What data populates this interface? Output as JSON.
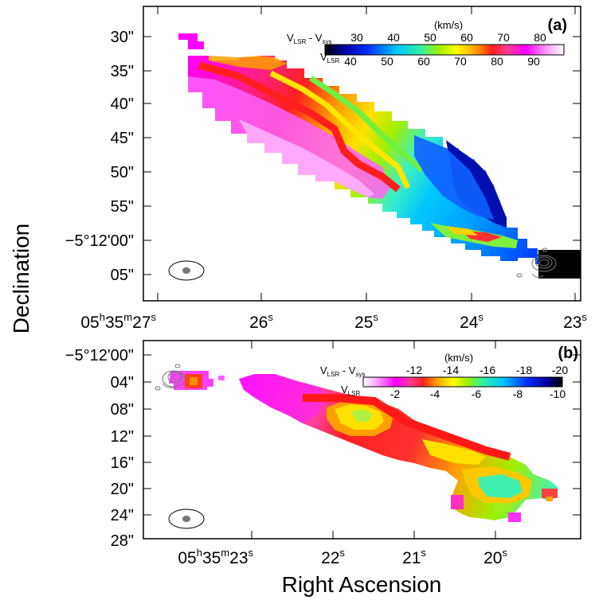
{
  "figure": {
    "ylabel": "Declination",
    "xlabel": "Right Ascension"
  },
  "chart_data": [
    {
      "type": "heatmap",
      "panel_label": "(a)",
      "colorbar": {
        "units": "(km/s)",
        "top_label": "V_LSR - V_sys",
        "bottom_label": "V_LSR",
        "top_ticks": [
          "30",
          "40",
          "50",
          "60",
          "70",
          "80"
        ],
        "bottom_ticks": [
          "40",
          "50",
          "60",
          "70",
          "80",
          "90"
        ],
        "top_range": [
          30,
          90
        ],
        "bottom_range": [
          40,
          100
        ],
        "colormap": [
          "#000000",
          "#0000a0",
          "#0030ff",
          "#00c8ff",
          "#30f0a0",
          "#a0f000",
          "#ffff00",
          "#ffa000",
          "#ff2020",
          "#ff3c8c",
          "#ff00ff",
          "#ffa0ff",
          "#ffffff"
        ]
      },
      "y_ticks": [
        "30\"",
        "35\"",
        "40\"",
        "45\"",
        "50\"",
        "55\"",
        "−5°12'00\"",
        "05\""
      ],
      "x_ticks": [
        {
          "main": "05",
          "sup1": "h",
          "mid": "35",
          "sup2": "m",
          "num": "27",
          "sup3": "s"
        },
        {
          "num": "26",
          "sup3": "s"
        },
        {
          "num": "25",
          "sup3": "s"
        },
        {
          "num": "24",
          "sup3": "s"
        },
        {
          "num": "23",
          "sup3": "s"
        }
      ],
      "beam": "ellipse, bottom-left",
      "contours": "grey, protostar near RA 23.3s",
      "jet_velocity_profile": [
        {
          "x_frac": 0.0,
          "v": 98
        },
        {
          "x_frac": 0.2,
          "v": 90
        },
        {
          "x_frac": 0.35,
          "v": 80
        },
        {
          "x_frac": 0.5,
          "v": 70
        },
        {
          "x_frac": 0.62,
          "v": 60
        },
        {
          "x_frac": 0.78,
          "v": 52
        },
        {
          "x_frac": 1.0,
          "v": 45
        }
      ]
    },
    {
      "type": "heatmap",
      "panel_label": "(b)",
      "colorbar": {
        "units": "(km/s)",
        "top_label": "V_LSR - V_sys",
        "bottom_label": "V_LSR",
        "top_ticks": [
          "-12",
          "-14",
          "-16",
          "-18",
          "-20"
        ],
        "bottom_ticks": [
          "-2",
          "-4",
          "-6",
          "-8",
          "-10"
        ],
        "top_range": [
          -10,
          -20
        ],
        "bottom_range": [
          0,
          -10
        ],
        "colormap": [
          "#ffffff",
          "#ffa0ff",
          "#ff00ff",
          "#ff3c8c",
          "#ff2020",
          "#ffa000",
          "#ffff00",
          "#a0f000",
          "#30f0a0",
          "#00c8ff",
          "#0030ff",
          "#0000a0",
          "#000000"
        ]
      },
      "y_ticks": [
        "−5°12'00\"",
        "04\"",
        "08\"",
        "12\"",
        "16\"",
        "20\"",
        "24\"",
        "28\""
      ],
      "x_ticks": [
        {
          "main": "05",
          "sup1": "h",
          "mid": "35",
          "sup2": "m",
          "num": "23",
          "sup3": "s"
        },
        {
          "num": "22",
          "sup3": "s"
        },
        {
          "num": "21",
          "sup3": "s"
        },
        {
          "num": "20",
          "sup3": "s"
        }
      ],
      "beam": "ellipse, bottom-left",
      "contours": "grey, protostar near RA 23.1s"
    }
  ]
}
